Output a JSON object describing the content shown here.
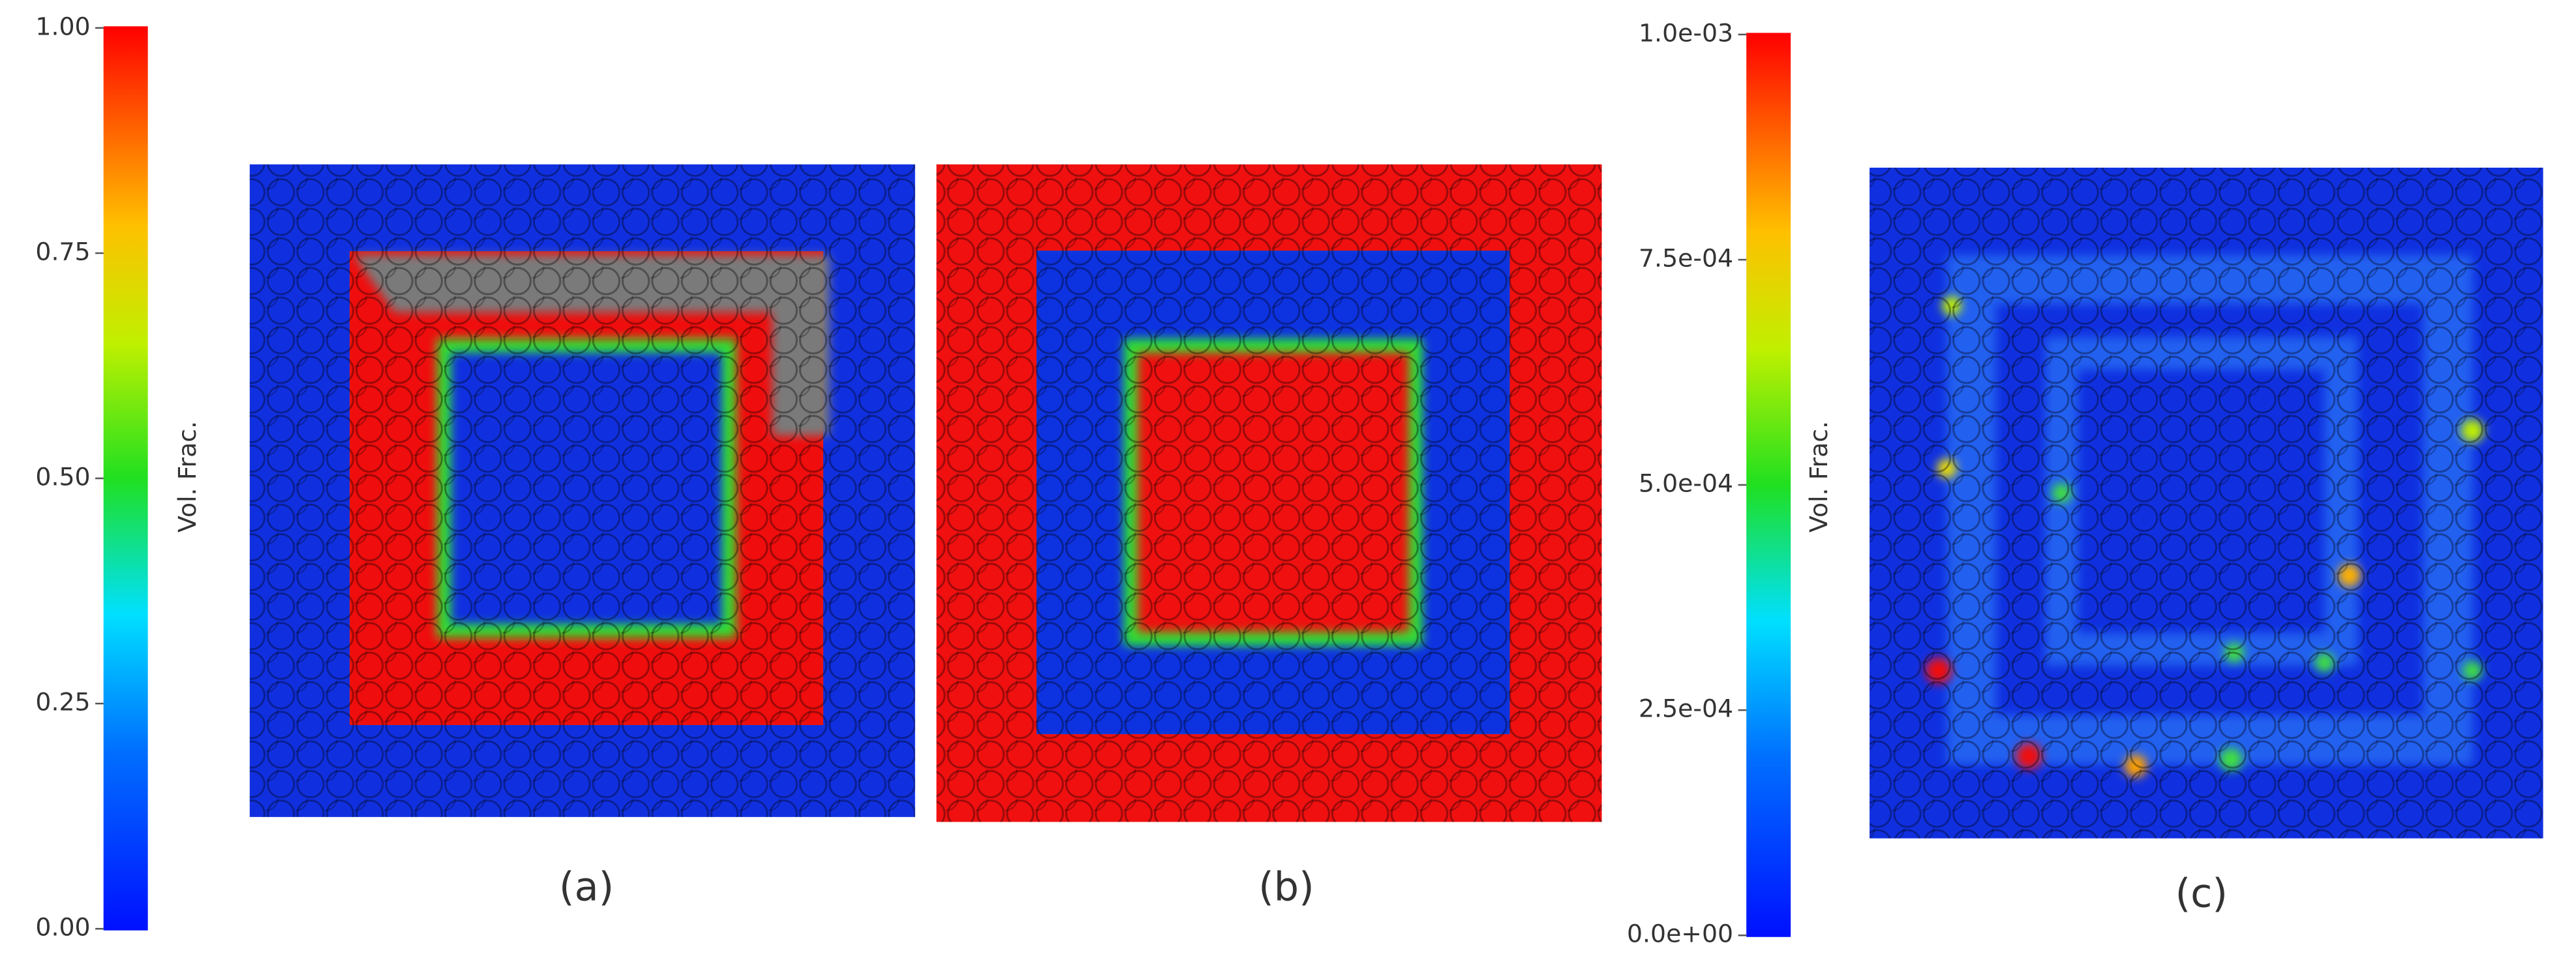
{
  "colorbars": [
    {
      "label": "Vol. Frac.",
      "range": [
        0,
        1
      ],
      "ticks": [
        {
          "value": 0,
          "label": "0.00"
        },
        {
          "value": 0.25,
          "label": "0.25"
        },
        {
          "value": 0.5,
          "label": "0.50"
        },
        {
          "value": 0.75,
          "label": "0.75"
        },
        {
          "value": 1,
          "label": "1.00"
        }
      ]
    },
    {
      "label": "Vol. Frac.",
      "range": [
        0,
        0.001
      ],
      "ticks": [
        {
          "value": 0,
          "label": "0.0e+00"
        },
        {
          "value": 0.00025,
          "label": "2.5e-04"
        },
        {
          "value": 0.0005,
          "label": "5.0e-04"
        },
        {
          "value": 0.00075,
          "label": "7.5e-04"
        },
        {
          "value": 0.001,
          "label": "1.0e-03"
        }
      ]
    }
  ],
  "panels": [
    {
      "label": "(a)"
    },
    {
      "label": "(b)"
    },
    {
      "label": "(c)"
    }
  ]
}
